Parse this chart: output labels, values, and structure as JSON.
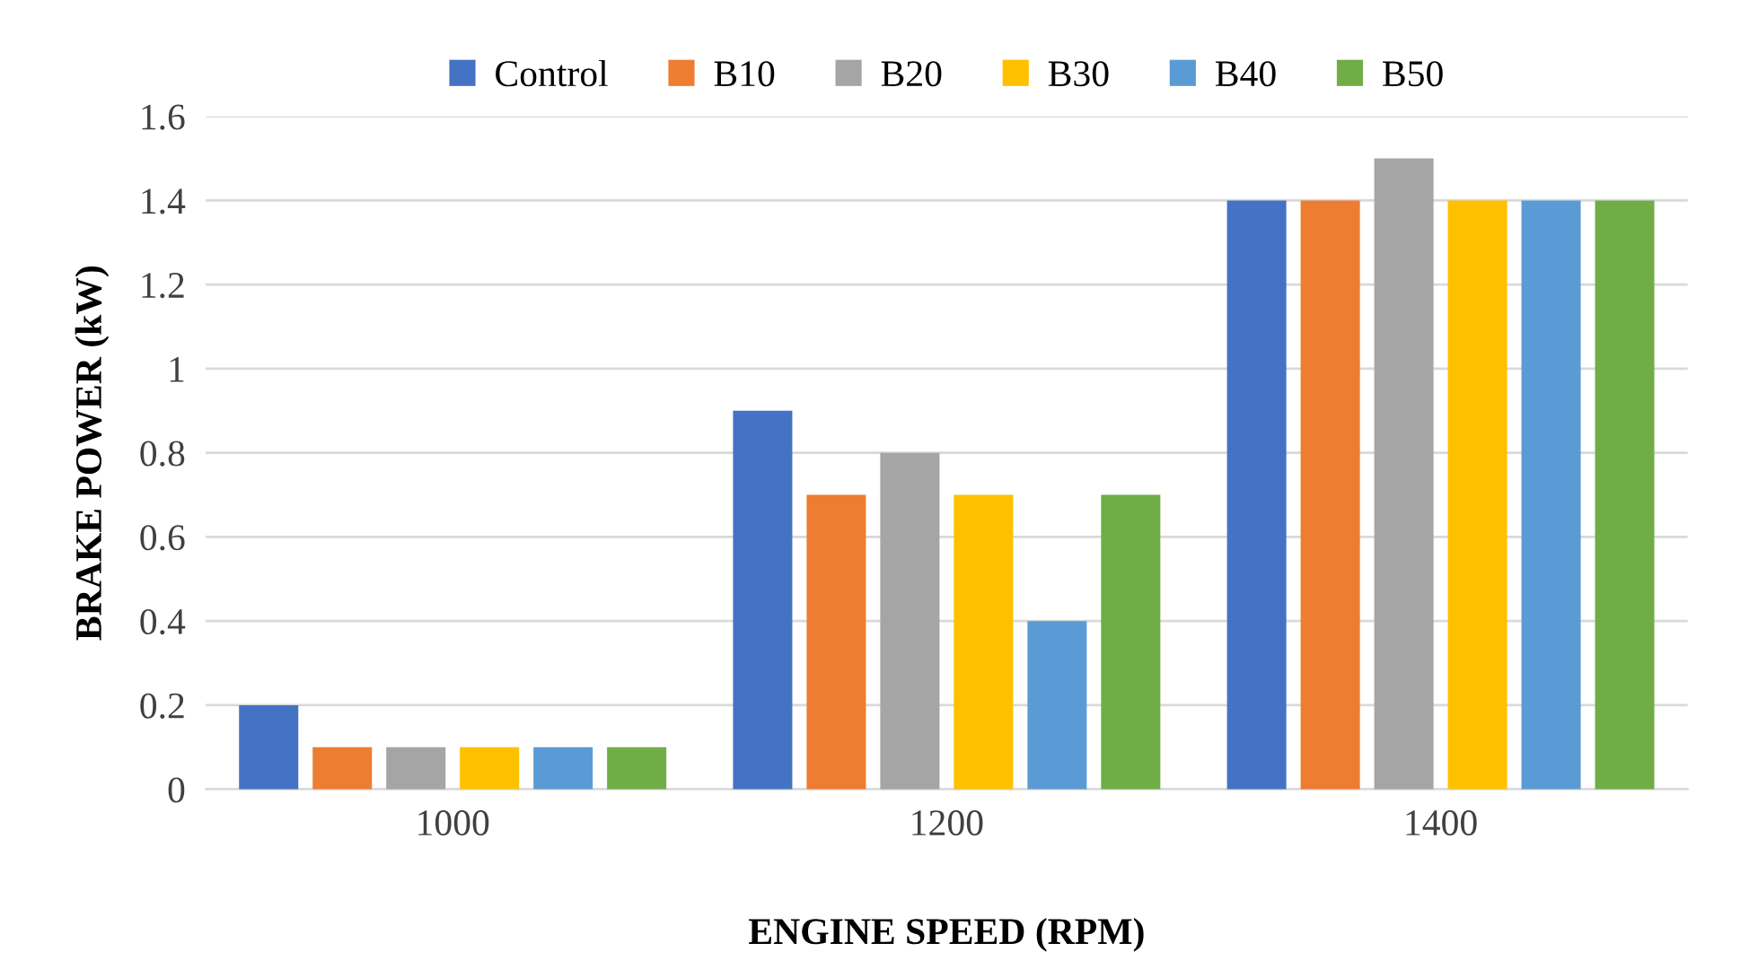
{
  "chart_data": {
    "type": "bar",
    "xlabel": "ENGINE SPEED (RPM)",
    "ylabel": "BRAKE POWER (kW)",
    "categories": [
      "1000",
      "1200",
      "1400"
    ],
    "series": [
      {
        "name": "Control",
        "color": "#4472c4",
        "values": [
          0.2,
          0.9,
          1.4
        ]
      },
      {
        "name": "B10",
        "color": "#ed7d31",
        "values": [
          0.1,
          0.7,
          1.4
        ]
      },
      {
        "name": "B20",
        "color": "#a5a5a5",
        "values": [
          0.1,
          0.8,
          1.5
        ]
      },
      {
        "name": "B30",
        "color": "#ffc000",
        "values": [
          0.1,
          0.7,
          1.4
        ]
      },
      {
        "name": "B40",
        "color": "#5b9bd5",
        "values": [
          0.1,
          0.4,
          1.4
        ]
      },
      {
        "name": "B50",
        "color": "#70ad47",
        "values": [
          0.1,
          0.7,
          1.4
        ]
      }
    ],
    "ylim": [
      0,
      1.6
    ],
    "yticks": [
      0,
      0.2,
      0.4,
      0.6,
      0.8,
      1,
      1.2,
      1.4,
      1.6
    ],
    "grid": "y",
    "legend": "top"
  }
}
